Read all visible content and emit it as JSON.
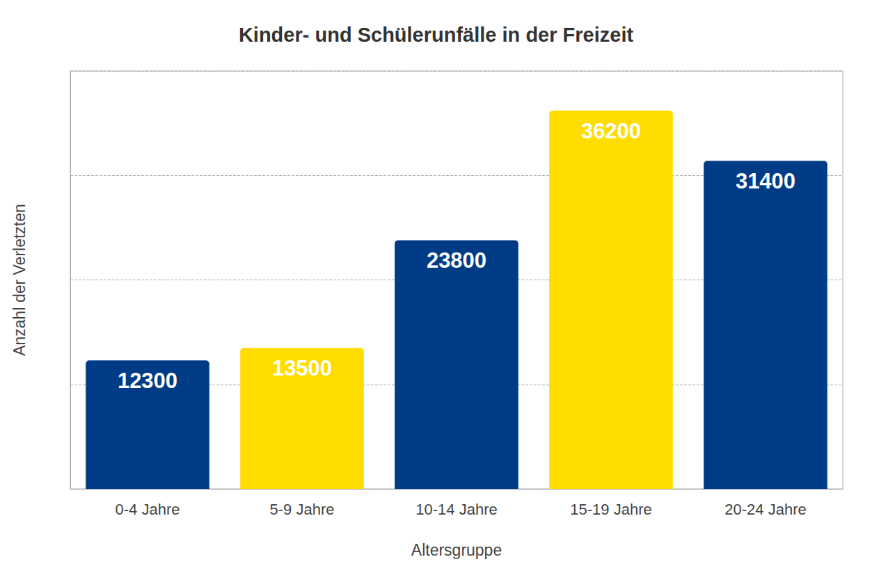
{
  "chart_data": {
    "type": "bar",
    "title": "Kinder- und Schülerunfälle in der Freizeit",
    "x_label": "Altersgruppe",
    "y_label": "Anzahl der Verletzten",
    "categories": [
      "0-4 Jahre",
      "5-9 Jahre",
      "10-14 Jahre",
      "15-19 Jahre",
      "20-24 Jahre"
    ],
    "values": [
      12300,
      13500,
      23800,
      36200,
      31400
    ],
    "colors": [
      "#003b85",
      "#ffdd00",
      "#003b85",
      "#ffdd00",
      "#003b85"
    ],
    "ylim": [
      0,
      40000
    ],
    "yticks": [
      0,
      10000,
      20000,
      30000,
      40000
    ],
    "grid": true,
    "data_labels": true,
    "tick_labels": "x"
  }
}
